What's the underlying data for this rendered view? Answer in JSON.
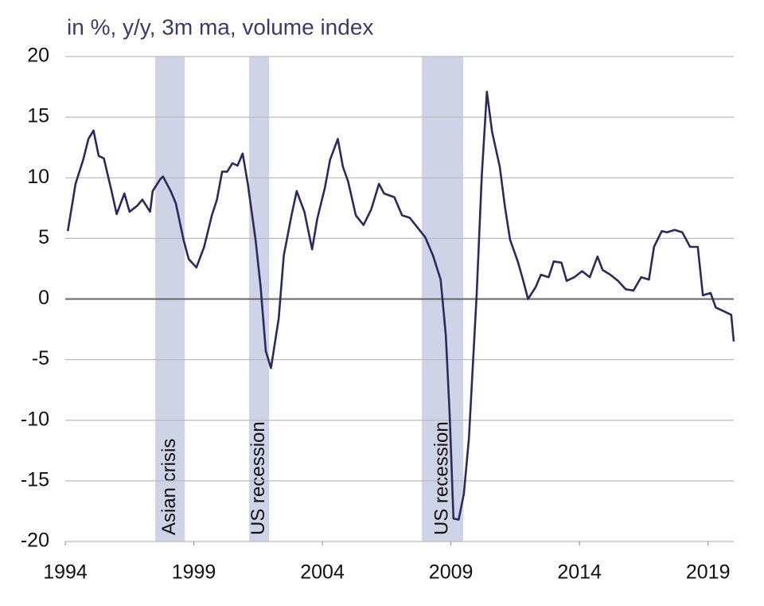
{
  "chart_data": {
    "type": "line",
    "title": "in %, y/y, 3m ma, volume  index",
    "xlim": [
      1994,
      2020
    ],
    "xticks": [
      1994,
      1999,
      2004,
      2009,
      2014,
      2019
    ],
    "ylim": [
      -20,
      20
    ],
    "yticks": [
      -20,
      -15,
      -10,
      -5,
      0,
      5,
      10,
      15,
      20
    ],
    "grid": true,
    "color": "#2b2a5c",
    "shade_color": "#cfd3e6",
    "shaded": [
      {
        "label": "Asian crisis",
        "start": 1997.5,
        "end": 1998.65
      },
      {
        "label": "US recession",
        "start": 2001.15,
        "end": 2001.93
      },
      {
        "label": "US recession",
        "start": 2007.87,
        "end": 2009.48
      }
    ],
    "x": [
      1994.1,
      1994.4,
      1994.7,
      1994.9,
      1995.1,
      1995.3,
      1995.5,
      1995.8,
      1996.0,
      1996.3,
      1996.5,
      1996.8,
      1997.0,
      1997.3,
      1997.4,
      1997.7,
      1997.8,
      1998.1,
      1998.3,
      1998.6,
      1998.8,
      1999.1,
      1999.4,
      1999.7,
      1999.9,
      2000.1,
      2000.3,
      2000.5,
      2000.7,
      2000.9,
      2001.1,
      2001.4,
      2001.6,
      2001.8,
      2002.0,
      2002.3,
      2002.5,
      2002.8,
      2003.0,
      2003.3,
      2003.6,
      2003.8,
      2004.1,
      2004.3,
      2004.6,
      2004.8,
      2005.0,
      2005.3,
      2005.6,
      2005.9,
      2006.2,
      2006.4,
      2006.8,
      2007.1,
      2007.4,
      2007.7,
      2008.0,
      2008.3,
      2008.6,
      2008.8,
      2008.95,
      2009.1,
      2009.3,
      2009.5,
      2009.7,
      2010.0,
      2010.2,
      2010.4,
      2010.6,
      2010.9,
      2011.1,
      2011.3,
      2011.6,
      2011.8,
      2012.0,
      2012.3,
      2012.5,
      2012.8,
      2013.0,
      2013.3,
      2013.5,
      2013.8,
      2014.1,
      2014.4,
      2014.7,
      2014.9,
      2015.2,
      2015.5,
      2015.8,
      2016.1,
      2016.4,
      2016.7,
      2016.9,
      2017.2,
      2017.4,
      2017.7,
      2018.0,
      2018.3,
      2018.6,
      2018.8,
      2019.1,
      2019.3,
      2019.6,
      2019.9,
      2020.0
    ],
    "values": [
      5.6,
      9.5,
      11.5,
      13.2,
      13.9,
      11.8,
      11.6,
      8.9,
      7.0,
      8.7,
      7.2,
      7.7,
      8.2,
      7.2,
      8.9,
      9.9,
      10.1,
      8.9,
      7.9,
      4.9,
      3.3,
      2.6,
      4.3,
      6.9,
      8.2,
      10.5,
      10.5,
      11.2,
      11.0,
      12.0,
      9.5,
      4.9,
      1.0,
      -4.3,
      -5.7,
      -1.6,
      3.6,
      6.9,
      8.9,
      7.2,
      4.1,
      6.6,
      9.2,
      11.5,
      13.2,
      10.9,
      9.7,
      6.9,
      6.1,
      7.4,
      9.5,
      8.7,
      8.4,
      6.9,
      6.7,
      5.9,
      5.1,
      3.6,
      1.6,
      -3.0,
      -9.5,
      -18.1,
      -18.2,
      -16.1,
      -11.5,
      0.3,
      10.2,
      17.1,
      13.8,
      10.9,
      7.6,
      4.9,
      3.1,
      1.6,
      0.0,
      1.0,
      2.0,
      1.8,
      3.1,
      3.0,
      1.5,
      1.8,
      2.3,
      1.8,
      3.5,
      2.4,
      2.0,
      1.5,
      0.8,
      0.7,
      1.8,
      1.6,
      4.3,
      5.6,
      5.5,
      5.7,
      5.5,
      4.3,
      4.3,
      0.3,
      0.5,
      -0.7,
      -1.0,
      -1.3,
      -3.5
    ]
  }
}
